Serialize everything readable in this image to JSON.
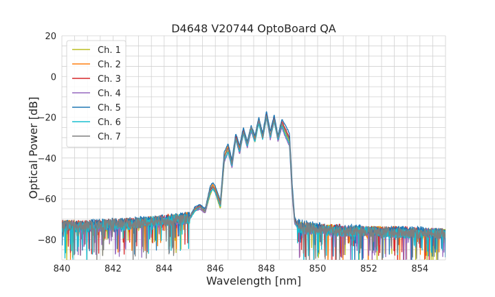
{
  "chart_data": {
    "type": "line",
    "title": "D4648 V20744 OptoBoard QA",
    "xlabel": "Wavelength [nm]",
    "ylabel": "Optical Power [dB]",
    "xlim": [
      840,
      855
    ],
    "ylim": [
      -90,
      20
    ],
    "xticks": [
      "840",
      "842",
      "844",
      "846",
      "848",
      "850",
      "852",
      "854"
    ],
    "yticks": [
      "20",
      "0",
      "−20",
      "−40",
      "−60",
      "−80"
    ],
    "grid": true,
    "legend_position": "top-left",
    "x": [
      840.0,
      840.5,
      841.0,
      841.5,
      842.0,
      842.5,
      843.0,
      843.5,
      844.0,
      844.5,
      845.0,
      845.2,
      845.4,
      845.6,
      845.8,
      845.9,
      846.0,
      846.2,
      846.35,
      846.5,
      846.65,
      846.8,
      846.95,
      847.1,
      847.25,
      847.4,
      847.55,
      847.7,
      847.85,
      848.0,
      848.15,
      848.3,
      848.45,
      848.6,
      848.75,
      848.9,
      849.0,
      849.1,
      849.2,
      849.5,
      850.0,
      850.5,
      851.0,
      851.5,
      852.0,
      852.5,
      853.0,
      853.5,
      854.0,
      854.5,
      855.0
    ],
    "series": [
      {
        "name": "Ch. 1",
        "color": "#bcbd22",
        "values": [
          -74,
          -73,
          -74,
          -74,
          -73,
          -73,
          -72,
          -71,
          -71,
          -70,
          -70,
          -66,
          -64,
          -67,
          -58,
          -55,
          -57,
          -65,
          -42,
          -36,
          -44,
          -30,
          -37,
          -27,
          -34,
          -26,
          -32,
          -22,
          -30,
          -19,
          -30,
          -21,
          -31,
          -24,
          -28,
          -32,
          -55,
          -70,
          -73,
          -74,
          -75,
          -75,
          -76,
          -76,
          -76,
          -76,
          -76,
          -77,
          -77,
          -77,
          -77
        ]
      },
      {
        "name": "Ch. 2",
        "color": "#ff7f0e",
        "values": [
          -73,
          -73,
          -74,
          -73,
          -73,
          -72,
          -72,
          -71,
          -70,
          -70,
          -69,
          -65,
          -64,
          -66,
          -55,
          -53,
          -55,
          -62,
          -39,
          -34,
          -42,
          -29,
          -35,
          -26,
          -33,
          -25,
          -30,
          -21,
          -29,
          -18,
          -29,
          -20,
          -30,
          -23,
          -27,
          -31,
          -54,
          -70,
          -73,
          -74,
          -75,
          -75,
          -76,
          -76,
          -76,
          -76,
          -77,
          -77,
          -77,
          -77,
          -77
        ]
      },
      {
        "name": "Ch. 3",
        "color": "#d62728",
        "values": [
          -73,
          -73,
          -73,
          -73,
          -72,
          -72,
          -72,
          -71,
          -70,
          -70,
          -69,
          -65,
          -63,
          -66,
          -56,
          -54,
          -56,
          -63,
          -40,
          -35,
          -43,
          -29,
          -36,
          -26,
          -33,
          -25,
          -31,
          -21,
          -30,
          -18,
          -29,
          -20,
          -30,
          -22,
          -26,
          -30,
          -53,
          -70,
          -73,
          -74,
          -75,
          -75,
          -75,
          -76,
          -76,
          -76,
          -76,
          -76,
          -77,
          -77,
          -77
        ]
      },
      {
        "name": "Ch. 4",
        "color": "#9467bd",
        "values": [
          -74,
          -74,
          -74,
          -74,
          -73,
          -73,
          -72,
          -72,
          -71,
          -71,
          -70,
          -66,
          -65,
          -67,
          -57,
          -55,
          -57,
          -64,
          -42,
          -37,
          -45,
          -31,
          -38,
          -28,
          -35,
          -27,
          -32,
          -22,
          -31,
          -20,
          -31,
          -22,
          -32,
          -25,
          -30,
          -34,
          -58,
          -72,
          -74,
          -75,
          -75,
          -76,
          -76,
          -76,
          -76,
          -77,
          -77,
          -77,
          -77,
          -77,
          -78
        ]
      },
      {
        "name": "Ch. 5",
        "color": "#1f77b4",
        "values": [
          -73,
          -73,
          -73,
          -72,
          -72,
          -72,
          -71,
          -71,
          -70,
          -69,
          -69,
          -64,
          -63,
          -65,
          -54,
          -52,
          -54,
          -61,
          -37,
          -33,
          -41,
          -28,
          -34,
          -25,
          -32,
          -24,
          -29,
          -20,
          -28,
          -17,
          -27,
          -19,
          -29,
          -21,
          -24,
          -28,
          -52,
          -69,
          -72,
          -73,
          -74,
          -75,
          -75,
          -75,
          -76,
          -76,
          -76,
          -76,
          -76,
          -77,
          -77
        ]
      },
      {
        "name": "Ch. 6",
        "color": "#17becf",
        "values": [
          -74,
          -74,
          -74,
          -73,
          -73,
          -73,
          -72,
          -71,
          -71,
          -70,
          -70,
          -66,
          -64,
          -66,
          -57,
          -55,
          -57,
          -64,
          -41,
          -37,
          -44,
          -31,
          -37,
          -28,
          -34,
          -26,
          -32,
          -23,
          -31,
          -20,
          -30,
          -22,
          -31,
          -24,
          -29,
          -33,
          -56,
          -71,
          -74,
          -75,
          -75,
          -76,
          -76,
          -76,
          -76,
          -77,
          -77,
          -77,
          -77,
          -77,
          -77
        ]
      },
      {
        "name": "Ch. 7",
        "color": "#7f7f7f",
        "values": [
          -73,
          -73,
          -73,
          -73,
          -72,
          -72,
          -72,
          -71,
          -71,
          -70,
          -69,
          -65,
          -64,
          -66,
          -55,
          -54,
          -56,
          -63,
          -40,
          -35,
          -43,
          -30,
          -36,
          -27,
          -33,
          -25,
          -31,
          -21,
          -30,
          -19,
          -29,
          -21,
          -30,
          -23,
          -27,
          -31,
          -55,
          -71,
          -73,
          -74,
          -75,
          -75,
          -76,
          -76,
          -76,
          -76,
          -76,
          -77,
          -77,
          -77,
          -77
        ]
      }
    ]
  }
}
